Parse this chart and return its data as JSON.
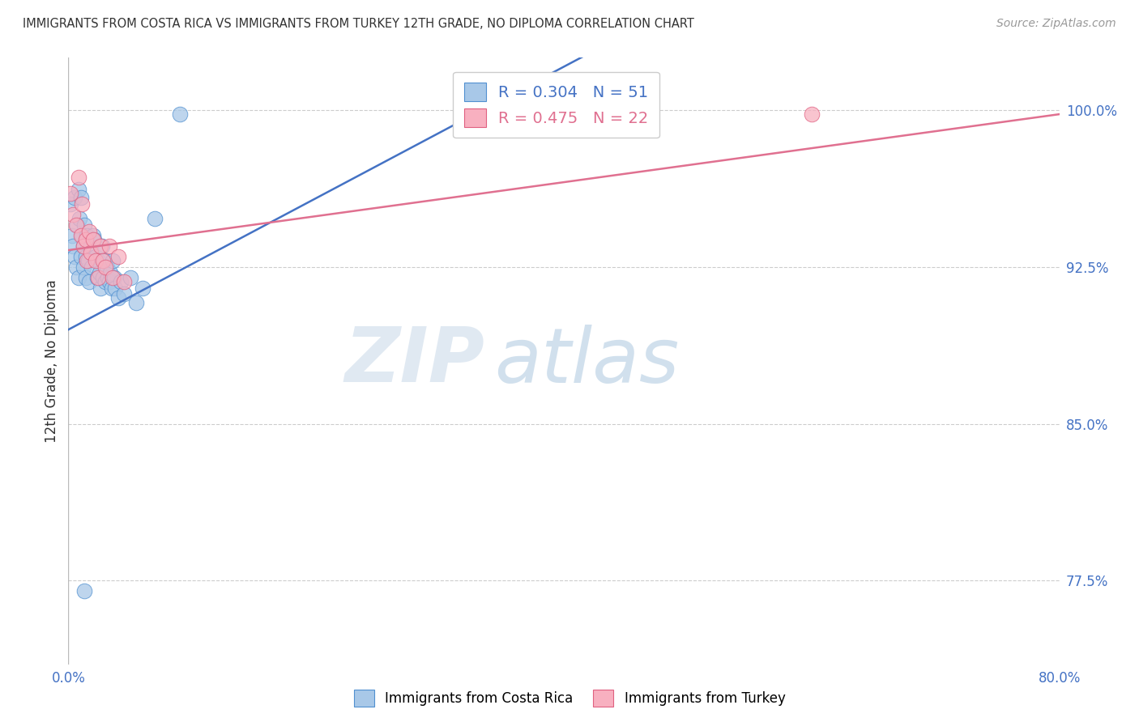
{
  "title": "IMMIGRANTS FROM COSTA RICA VS IMMIGRANTS FROM TURKEY 12TH GRADE, NO DIPLOMA CORRELATION CHART",
  "source": "Source: ZipAtlas.com",
  "ylabel": "12th Grade, No Diploma",
  "y_ticks": [
    0.775,
    0.85,
    0.925,
    1.0
  ],
  "y_tick_labels": [
    "77.5%",
    "85.0%",
    "92.5%",
    "100.0%"
  ],
  "xlim": [
    0.0,
    0.8
  ],
  "ylim": [
    0.735,
    1.025
  ],
  "legend_label1": "Immigrants from Costa Rica",
  "legend_label2": "Immigrants from Turkey",
  "r1": 0.304,
  "n1": 51,
  "r2": 0.475,
  "n2": 22,
  "color1": "#a8c8e8",
  "color2": "#f8b0c0",
  "edge_color1": "#5090d0",
  "edge_color2": "#e06080",
  "line_color1": "#4472c4",
  "line_color2": "#e07090",
  "watermark_zip": "ZIP",
  "watermark_atlas": "atlas",
  "background_color": "#ffffff",
  "grid_color": "#cccccc",
  "tick_color": "#4472c4",
  "title_color": "#333333",
  "source_color": "#999999",
  "ylabel_color": "#333333",
  "blue_line_x0": 0.0,
  "blue_line_y0": 0.895,
  "blue_line_x1": 0.35,
  "blue_line_y1": 1.005,
  "pink_line_x0": 0.0,
  "pink_line_y0": 0.933,
  "pink_line_x1": 0.8,
  "pink_line_y1": 0.998,
  "cr_x": [
    0.002,
    0.003,
    0.004,
    0.005,
    0.005,
    0.006,
    0.007,
    0.008,
    0.008,
    0.009,
    0.01,
    0.01,
    0.011,
    0.012,
    0.012,
    0.013,
    0.014,
    0.014,
    0.015,
    0.016,
    0.017,
    0.018,
    0.019,
    0.02,
    0.021,
    0.022,
    0.023,
    0.024,
    0.025,
    0.026,
    0.027,
    0.028,
    0.029,
    0.03,
    0.031,
    0.032,
    0.033,
    0.034,
    0.035,
    0.036,
    0.037,
    0.038,
    0.04,
    0.042,
    0.045,
    0.05,
    0.055,
    0.06,
    0.07,
    0.09,
    0.013
  ],
  "cr_y": [
    0.955,
    0.94,
    0.935,
    0.958,
    0.93,
    0.925,
    0.945,
    0.962,
    0.92,
    0.948,
    0.93,
    0.958,
    0.94,
    0.925,
    0.935,
    0.945,
    0.93,
    0.92,
    0.94,
    0.928,
    0.918,
    0.935,
    0.925,
    0.94,
    0.938,
    0.93,
    0.92,
    0.928,
    0.922,
    0.915,
    0.935,
    0.92,
    0.928,
    0.918,
    0.925,
    0.92,
    0.918,
    0.922,
    0.915,
    0.928,
    0.92,
    0.915,
    0.91,
    0.918,
    0.912,
    0.92,
    0.908,
    0.915,
    0.948,
    0.998,
    0.77
  ],
  "tr_x": [
    0.002,
    0.004,
    0.006,
    0.008,
    0.01,
    0.011,
    0.012,
    0.014,
    0.015,
    0.017,
    0.018,
    0.02,
    0.022,
    0.024,
    0.026,
    0.028,
    0.03,
    0.033,
    0.036,
    0.04,
    0.045,
    0.6
  ],
  "tr_y": [
    0.96,
    0.95,
    0.945,
    0.968,
    0.94,
    0.955,
    0.935,
    0.938,
    0.928,
    0.942,
    0.932,
    0.938,
    0.928,
    0.92,
    0.935,
    0.928,
    0.925,
    0.935,
    0.92,
    0.93,
    0.918,
    0.998
  ]
}
